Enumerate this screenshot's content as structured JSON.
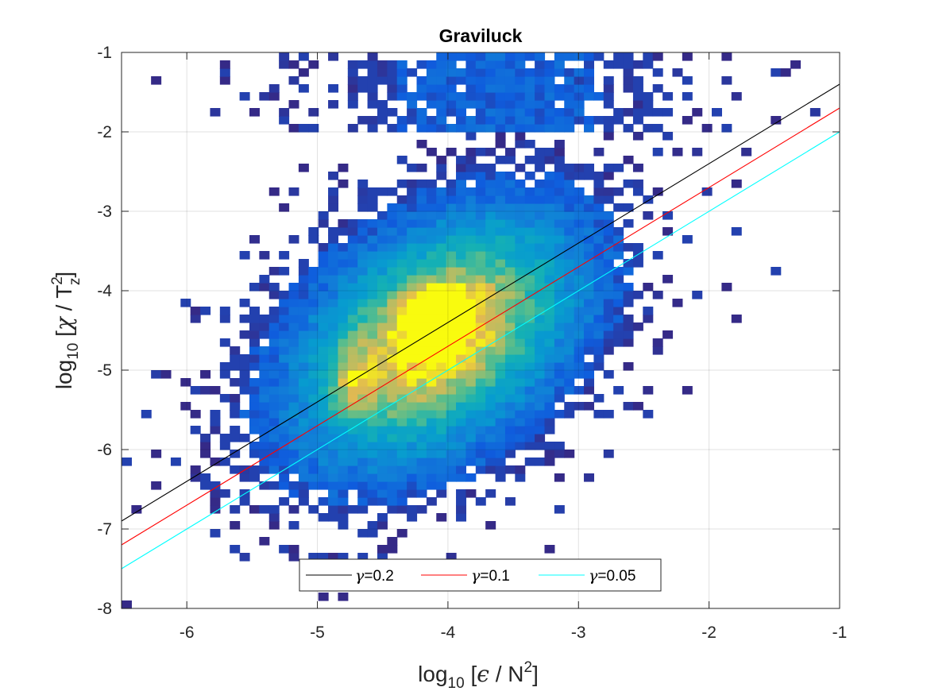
{
  "chart_data": {
    "type": "heatmap",
    "title": "Graviluck",
    "xlabel": {
      "prefix": "log",
      "sub": "10",
      "body_open": " [",
      "sym": "ϵ",
      "body_mid": " / N",
      "sup": "2",
      "body_close": "]"
    },
    "ylabel": {
      "prefix": "log",
      "sub": "10",
      "body_open": " [",
      "sym": "χ",
      "body_mid": " / T",
      "sup": "2",
      "subz": "z",
      "body_close": "]"
    },
    "xlim": [
      -6.5,
      -1
    ],
    "ylim": [
      -8,
      -1
    ],
    "xticks": [
      -6,
      -5,
      -4,
      -3,
      -2,
      -1
    ],
    "xticklabels": [
      "-6",
      "-5",
      "-4",
      "-3",
      "-2",
      "-1"
    ],
    "yticks": [
      -8,
      -7,
      -6,
      -5,
      -4,
      -3,
      -2,
      -1
    ],
    "yticklabels": [
      "-8",
      "-7",
      "-6",
      "-5",
      "-4",
      "-3",
      "-2",
      "-1"
    ],
    "grid": true,
    "colormap": "parula",
    "histogram": {
      "bin_width_x": 0.075,
      "bin_width_y": 0.1,
      "center_x": -4.1,
      "center_y": -4.6,
      "slope": 0.6,
      "density_note": "2D histogram of log10 chi/Tz^2 vs log10 eps/N^2; peak counts near x=-4.1, y=-4.4"
    },
    "series": [
      {
        "name": "γ=0.2",
        "label_sym": "γ",
        "label_val": "=0.2",
        "color": "#000000",
        "x": [
          -6.5,
          -1
        ],
        "y": [
          -6.9,
          -1.4
        ]
      },
      {
        "name": "γ=0.1",
        "label_sym": "γ",
        "label_val": "=0.1",
        "color": "#ff0000",
        "x": [
          -6.5,
          -1
        ],
        "y": [
          -7.2,
          -1.7
        ]
      },
      {
        "name": "γ=0.05",
        "label_sym": "γ",
        "label_val": "=0.05",
        "color": "#00ffff",
        "x": [
          -6.5,
          -1
        ],
        "y": [
          -7.5,
          -2.0
        ]
      }
    ],
    "legend_location": "bottom-center"
  }
}
